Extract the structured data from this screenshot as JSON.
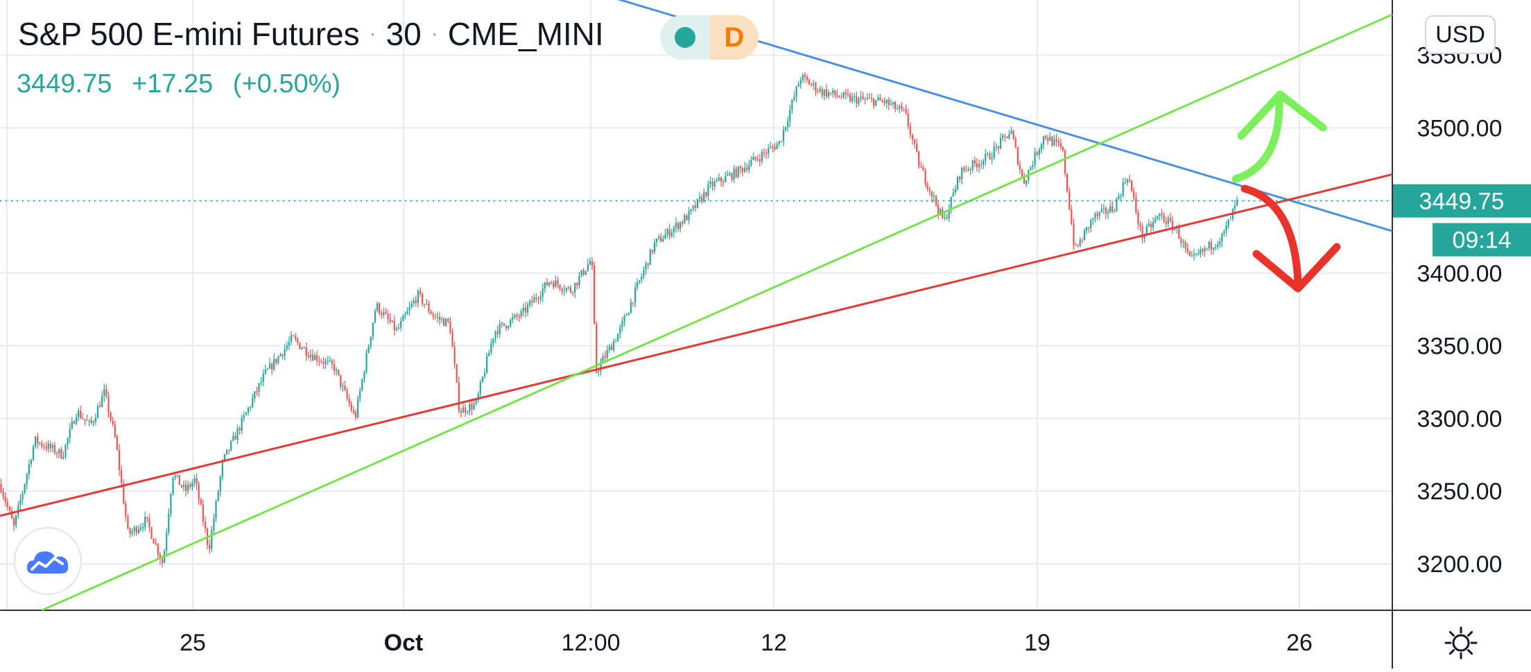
{
  "header": {
    "symbol": "S&P 500 E-mini Futures",
    "separator": "·",
    "interval": "30",
    "exchange": "CME_MINI",
    "status_letter": "D"
  },
  "quote": {
    "price": "3449.75",
    "change": "+17.25",
    "change_pct": "(+0.50%)"
  },
  "currency_button": "USD",
  "price_badge": "3449.75",
  "countdown_badge": "09:14",
  "colors": {
    "up": "#26a69a",
    "down": "#ef5350",
    "resistance": "#4a90e2",
    "support_red": "#e53935",
    "support_green": "#76e34a",
    "arrow_up": "#7cf05a",
    "arrow_down": "#e8322a",
    "price_line": "#26a69a"
  },
  "icons": {
    "logo": "tradingview-cloud-icon",
    "settings": "gear-icon"
  },
  "chart_data": {
    "type": "candlestick",
    "title": "S&P 500 E-mini Futures · 30 · CME_MINI",
    "y_axis": {
      "side": "right",
      "ticks": [
        3550,
        3500,
        3450,
        3400,
        3350,
        3300,
        3250,
        3200
      ],
      "tick_labels": [
        "3550.00",
        "3500.00",
        "3450.00",
        "3400.00",
        "3350.00",
        "3300.00",
        "3250.00",
        "3200.00"
      ],
      "ylim": [
        3168,
        3588
      ]
    },
    "x_axis": {
      "labels": [
        "25",
        "Oct",
        "12:00",
        "12",
        "19",
        "26"
      ],
      "label_bold": [
        false,
        true,
        false,
        false,
        false,
        false
      ]
    },
    "grid": true,
    "last_price": 3449.75,
    "price_path": [
      {
        "t": 0.0,
        "p": 3255
      },
      {
        "t": 0.01,
        "p": 3225
      },
      {
        "t": 0.025,
        "p": 3285
      },
      {
        "t": 0.045,
        "p": 3275
      },
      {
        "t": 0.055,
        "p": 3305
      },
      {
        "t": 0.065,
        "p": 3295
      },
      {
        "t": 0.075,
        "p": 3318
      },
      {
        "t": 0.083,
        "p": 3285
      },
      {
        "t": 0.092,
        "p": 3220
      },
      {
        "t": 0.105,
        "p": 3230
      },
      {
        "t": 0.117,
        "p": 3200
      },
      {
        "t": 0.124,
        "p": 3262
      },
      {
        "t": 0.133,
        "p": 3250
      },
      {
        "t": 0.14,
        "p": 3258
      },
      {
        "t": 0.15,
        "p": 3210
      },
      {
        "t": 0.16,
        "p": 3270
      },
      {
        "t": 0.175,
        "p": 3300
      },
      {
        "t": 0.19,
        "p": 3330
      },
      {
        "t": 0.21,
        "p": 3355
      },
      {
        "t": 0.222,
        "p": 3345
      },
      {
        "t": 0.24,
        "p": 3335
      },
      {
        "t": 0.255,
        "p": 3300
      },
      {
        "t": 0.27,
        "p": 3378
      },
      {
        "t": 0.285,
        "p": 3360
      },
      {
        "t": 0.3,
        "p": 3385
      },
      {
        "t": 0.312,
        "p": 3370
      },
      {
        "t": 0.323,
        "p": 3365
      },
      {
        "t": 0.33,
        "p": 3305
      },
      {
        "t": 0.342,
        "p": 3310
      },
      {
        "t": 0.355,
        "p": 3360
      },
      {
        "t": 0.375,
        "p": 3372
      },
      {
        "t": 0.395,
        "p": 3395
      },
      {
        "t": 0.41,
        "p": 3388
      },
      {
        "t": 0.425,
        "p": 3410
      },
      {
        "t": 0.428,
        "p": 3332
      },
      {
        "t": 0.445,
        "p": 3360
      },
      {
        "t": 0.47,
        "p": 3420
      },
      {
        "t": 0.495,
        "p": 3440
      },
      {
        "t": 0.51,
        "p": 3460
      },
      {
        "t": 0.53,
        "p": 3470
      },
      {
        "t": 0.56,
        "p": 3490
      },
      {
        "t": 0.575,
        "p": 3535
      },
      {
        "t": 0.59,
        "p": 3525
      },
      {
        "t": 0.61,
        "p": 3520
      },
      {
        "t": 0.635,
        "p": 3518
      },
      {
        "t": 0.65,
        "p": 3510
      },
      {
        "t": 0.66,
        "p": 3475
      },
      {
        "t": 0.678,
        "p": 3435
      },
      {
        "t": 0.69,
        "p": 3470
      },
      {
        "t": 0.71,
        "p": 3480
      },
      {
        "t": 0.726,
        "p": 3498
      },
      {
        "t": 0.735,
        "p": 3462
      },
      {
        "t": 0.75,
        "p": 3495
      },
      {
        "t": 0.763,
        "p": 3485
      },
      {
        "t": 0.772,
        "p": 3415
      },
      {
        "t": 0.785,
        "p": 3438
      },
      {
        "t": 0.8,
        "p": 3445
      },
      {
        "t": 0.81,
        "p": 3468
      },
      {
        "t": 0.82,
        "p": 3425
      },
      {
        "t": 0.833,
        "p": 3440
      },
      {
        "t": 0.845,
        "p": 3430
      },
      {
        "t": 0.855,
        "p": 3408
      },
      {
        "t": 0.868,
        "p": 3418
      },
      {
        "t": 0.878,
        "p": 3425
      },
      {
        "t": 0.889,
        "p": 3449.75
      }
    ],
    "trend_lines": [
      {
        "name": "blue-resistance",
        "points": [
          [
            0.418,
            3596
          ],
          [
            1.0,
            3429
          ]
        ]
      },
      {
        "name": "red-support",
        "points": [
          [
            0.0,
            3233
          ],
          [
            1.0,
            3468
          ]
        ]
      },
      {
        "name": "green-support",
        "points": [
          [
            0.03,
            3168
          ],
          [
            1.0,
            3578
          ]
        ]
      }
    ],
    "annotations": [
      {
        "type": "arrow",
        "direction": "up",
        "color": "green"
      },
      {
        "type": "arrow",
        "direction": "down",
        "color": "red"
      }
    ]
  }
}
